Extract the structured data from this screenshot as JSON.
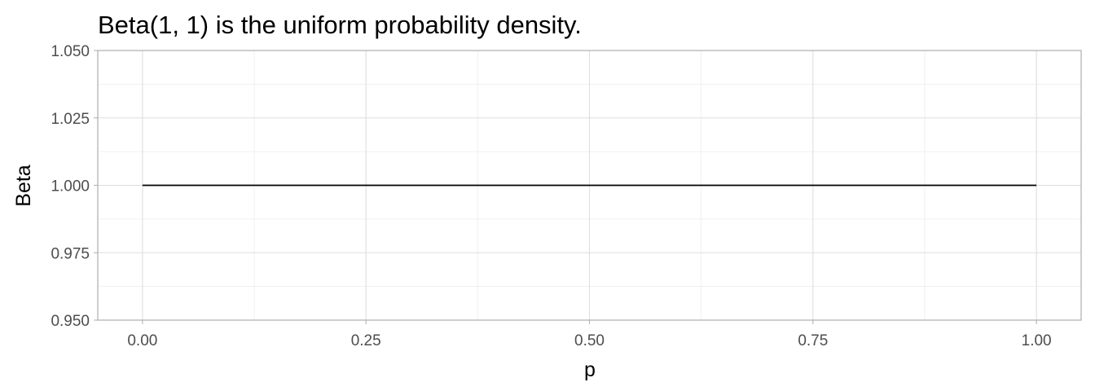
{
  "chart_data": {
    "type": "line",
    "title": "Beta(1, 1) is the uniform probability density.",
    "xlabel": "p",
    "ylabel": "Beta",
    "xlim": [
      -0.05,
      1.05
    ],
    "ylim": [
      0.95,
      1.05
    ],
    "x_ticks": [
      0.0,
      0.25,
      0.5,
      0.75,
      1.0
    ],
    "x_tick_labels": [
      "0.00",
      "0.25",
      "0.50",
      "0.75",
      "1.00"
    ],
    "y_ticks": [
      0.95,
      0.975,
      1.0,
      1.025,
      1.05
    ],
    "y_tick_labels": [
      "0.950",
      "0.975",
      "1.000",
      "1.025",
      "1.050"
    ],
    "grid": true,
    "series": [
      {
        "x": [
          0.0,
          0.25,
          0.5,
          0.75,
          1.0
        ],
        "y": [
          1.0,
          1.0,
          1.0,
          1.0,
          1.0
        ],
        "color": "#000000"
      }
    ]
  }
}
